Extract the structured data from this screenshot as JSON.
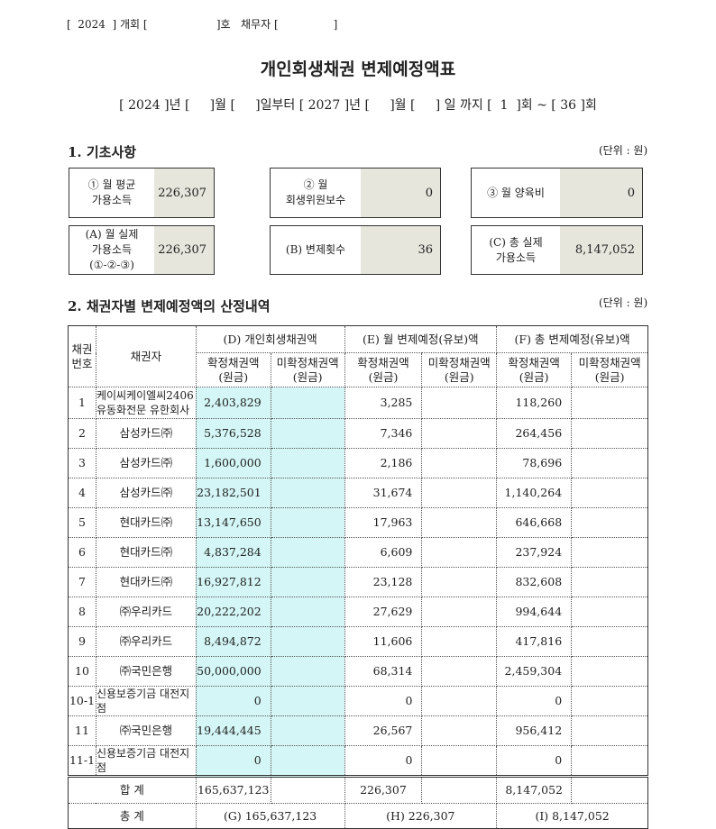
{
  "header_line": "[  2024  ] 개회 [                    ]호   채무자 [                ]",
  "title": "개인회생채권 변제예정액표",
  "period": "[ 2024 ]년 [     ]월 [     ]일부터 [ 2027 ]년 [     ]월 [     ] 일 까지 [  1  ]회 ~ [ 36 ]회",
  "section1": {
    "title": "1. 기초사항",
    "unit": "(단위 : 원)",
    "boxes": [
      {
        "label": "① 월 평균\n가용소득",
        "value": "226,307"
      },
      {
        "label": "② 월\n회생위원보수",
        "value": "0"
      },
      {
        "label": "③ 월 양육비",
        "value": "0"
      },
      {
        "label": "(A) 월 실제\n가용소득\n(①-②-③)",
        "value": "226,307"
      },
      {
        "label": "(B) 변제횟수",
        "value": "36"
      },
      {
        "label": "(C) 총 실제\n가용소득",
        "value": "8,147,052"
      }
    ]
  },
  "section2": {
    "title": "2. 채권자별 변제예정액의 산정내역",
    "unit": "(단위 : 원)",
    "headers": {
      "no": "채권\n번호",
      "creditor": "채권자",
      "d": "(D) 개인회생채권액",
      "e": "(E) 월 변제예정(유보)액",
      "f": "(F) 총 변제예정(유보)액",
      "confirmed": "확정채권액\n(원금)",
      "unconfirmed": "미확정채권액\n(원금)"
    },
    "rows": [
      {
        "no": "1",
        "creditor": "케이씨케이엘씨2406\n유동화전문 유한회사",
        "d": "2,403,829",
        "e": "3,285",
        "f": "118,260"
      },
      {
        "no": "2",
        "creditor": "삼성카드㈜",
        "d": "5,376,528",
        "e": "7,346",
        "f": "264,456"
      },
      {
        "no": "3",
        "creditor": "삼성카드㈜",
        "d": "1,600,000",
        "e": "2,186",
        "f": "78,696"
      },
      {
        "no": "4",
        "creditor": "삼성카드㈜",
        "d": "23,182,501",
        "e": "31,674",
        "f": "1,140,264"
      },
      {
        "no": "5",
        "creditor": "현대카드㈜",
        "d": "13,147,650",
        "e": "17,963",
        "f": "646,668"
      },
      {
        "no": "6",
        "creditor": "현대카드㈜",
        "d": "4,837,284",
        "e": "6,609",
        "f": "237,924"
      },
      {
        "no": "7",
        "creditor": "현대카드㈜",
        "d": "16,927,812",
        "e": "23,128",
        "f": "832,608"
      },
      {
        "no": "8",
        "creditor": "㈜우리카드",
        "d": "20,222,202",
        "e": "27,629",
        "f": "994,644"
      },
      {
        "no": "9",
        "creditor": "㈜우리카드",
        "d": "8,494,872",
        "e": "11,606",
        "f": "417,816"
      },
      {
        "no": "10",
        "creditor": "㈜국민은행",
        "d": "50,000,000",
        "e": "68,314",
        "f": "2,459,304"
      },
      {
        "no": "10-1",
        "creditor": "신용보증기금 대전지\n점",
        "d": "0",
        "e": "0",
        "f": "0"
      },
      {
        "no": "11",
        "creditor": "㈜국민은행",
        "d": "19,444,445",
        "e": "26,567",
        "f": "956,412"
      },
      {
        "no": "11-1",
        "creditor": "신용보증기금 대전지\n점",
        "d": "0",
        "e": "0",
        "f": "0"
      }
    ],
    "subtotal": {
      "label": "합 계",
      "d": "165,637,123",
      "e": "226,307",
      "f": "8,147,052"
    },
    "total": {
      "label": "총 계",
      "g": "(G) 165,637,123",
      "h": "(H) 226,307",
      "i": "(I) 8,147,052"
    }
  }
}
